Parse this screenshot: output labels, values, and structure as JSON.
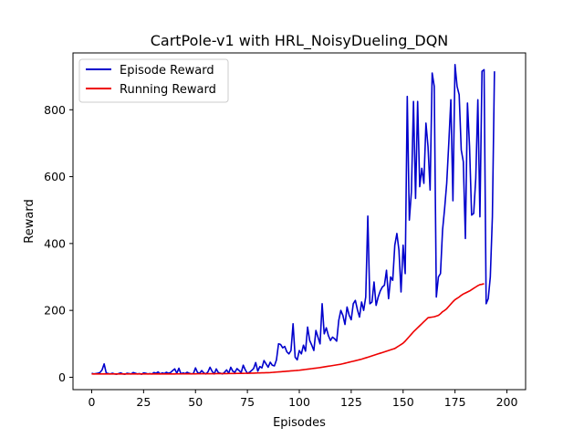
{
  "chart_data": {
    "type": "line",
    "title": "CartPole-v1 with HRL_NoisyDueling_DQN",
    "xlabel": "Episodes",
    "ylabel": "Reward",
    "xlim": [
      -9,
      209
    ],
    "ylim": [
      -37,
      970
    ],
    "xticks": [
      0,
      25,
      50,
      75,
      100,
      125,
      150,
      175,
      200
    ],
    "yticks": [
      0,
      200,
      400,
      600,
      800
    ],
    "grid": false,
    "legend_position": "top-left",
    "series": [
      {
        "name": "Episode Reward",
        "color": "#0000cc",
        "values": [
          12,
          10,
          11,
          12,
          14,
          22,
          40,
          13,
          11,
          10,
          12,
          10,
          9,
          11,
          13,
          10,
          9,
          12,
          11,
          10,
          14,
          12,
          10,
          11,
          9,
          13,
          12,
          10,
          11,
          10,
          14,
          12,
          16,
          10,
          13,
          11,
          15,
          12,
          14,
          20,
          25,
          12,
          27,
          10,
          13,
          11,
          15,
          12,
          10,
          11,
          28,
          14,
          12,
          20,
          13,
          10,
          16,
          30,
          18,
          10,
          25,
          14,
          12,
          10,
          15,
          22,
          12,
          30,
          18,
          15,
          26,
          20,
          14,
          36,
          22,
          12,
          15,
          20,
          26,
          44,
          18,
          32,
          28,
          50,
          40,
          30,
          45,
          36,
          34,
          52,
          100,
          98,
          88,
          92,
          76,
          70,
          80,
          160,
          60,
          52,
          80,
          70,
          96,
          78,
          150,
          110,
          96,
          80,
          140,
          120,
          100,
          220,
          130,
          148,
          125,
          110,
          120,
          115,
          108,
          170,
          200,
          185,
          158,
          210,
          186,
          172,
          220,
          230,
          202,
          180,
          225,
          200,
          240,
          482,
          220,
          225,
          285,
          215,
          240,
          258,
          270,
          275,
          320,
          235,
          300,
          290,
          395,
          430,
          380,
          255,
          395,
          310,
          840,
          470,
          555,
          825,
          535,
          825,
          570,
          625,
          580,
          760,
          690,
          560,
          910,
          870,
          240,
          300,
          310,
          440,
          505,
          580,
          700,
          830,
          528,
          935,
          870,
          845,
          680,
          645,
          415,
          820,
          690,
          485,
          490,
          595,
          830,
          480,
          915,
          920,
          220,
          235,
          300,
          480,
          915
        ]
      },
      {
        "name": "Running Reward",
        "color": "#ee0000",
        "values": [
          10,
          9.9,
          9.9,
          9.9,
          9.8,
          9.8,
          9.8,
          9.8,
          9.8,
          9.8,
          9.8,
          9.8,
          9.8,
          9.8,
          9.8,
          9.8,
          9.8,
          9.8,
          9.8,
          9.8,
          9.8,
          9.8,
          9.8,
          9.8,
          9.8,
          9.8,
          9.8,
          9.8,
          9.8,
          9.8,
          9.9,
          9.9,
          9.9,
          9.9,
          10,
          10,
          10,
          10,
          10,
          10,
          10,
          10.1,
          10.1,
          10.1,
          10.1,
          10.2,
          10.2,
          10.2,
          10.2,
          10.3,
          10.3,
          10.4,
          10.4,
          10.5,
          10.5,
          10.5,
          10.6,
          10.6,
          10.7,
          10.7,
          10.8,
          10.8,
          10.9,
          10.9,
          11,
          11,
          11.1,
          11.2,
          11.2,
          11.3,
          11.4,
          11.5,
          11.6,
          11.7,
          11.8,
          11.9,
          12,
          12.2,
          12.4,
          12.6,
          12.8,
          13,
          13.2,
          13.4,
          13.6,
          13.8,
          14,
          14.5,
          15,
          15.5,
          16,
          16.5,
          17,
          17.5,
          18,
          18.5,
          19,
          19.5,
          20,
          20.5,
          21,
          21.8,
          22.6,
          23.4,
          24.2,
          25,
          25.8,
          26.6,
          27.4,
          28.2,
          29,
          30,
          31,
          32,
          33,
          34,
          35,
          36,
          37,
          38,
          39,
          40.5,
          42,
          43.5,
          45,
          46.5,
          48,
          49.5,
          51,
          52.5,
          54,
          56,
          58,
          60,
          62,
          64,
          66,
          68,
          70,
          72,
          74,
          76,
          78,
          80,
          82,
          84,
          86,
          90,
          94,
          98,
          102,
          108,
          115,
          122,
          129,
          136,
          142,
          148,
          154,
          160,
          166,
          172,
          178,
          179,
          180,
          181,
          183,
          185,
          190,
          196,
          200,
          205,
          212,
          219,
          226,
          232,
          236,
          240,
          245,
          249,
          252,
          255,
          258,
          262,
          266,
          270,
          274,
          277,
          278,
          280
        ]
      }
    ]
  }
}
